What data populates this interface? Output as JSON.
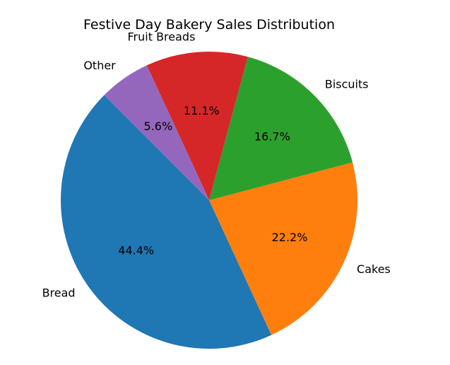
{
  "chart_data": {
    "type": "pie",
    "title": "Festive Day Bakery Sales Distribution",
    "start_angle_deg": 135,
    "direction": "counterclockwise",
    "slices": [
      {
        "label": "Bread",
        "value": 44.4,
        "pct_label": "44.4%",
        "color": "#1f77b4"
      },
      {
        "label": "Cakes",
        "value": 22.2,
        "pct_label": "22.2%",
        "color": "#ff7f0e"
      },
      {
        "label": "Biscuits",
        "value": 16.7,
        "pct_label": "16.7%",
        "color": "#2ca02c"
      },
      {
        "label": "Fruit Breads",
        "value": 11.1,
        "pct_label": "11.1%",
        "color": "#d62728"
      },
      {
        "label": "Other",
        "value": 5.6,
        "pct_label": "5.6%",
        "color": "#9467bd"
      }
    ]
  }
}
